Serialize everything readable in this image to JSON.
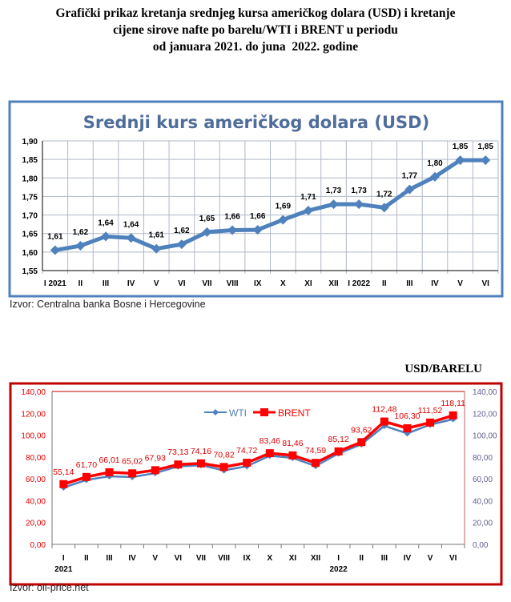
{
  "heading": {
    "line1": "Grafički prikaz kretanja srednjeg kursa američkog dolara (USD) i kretanje",
    "line2": "cijene sirove nafte po barelu/WTI i BRENT u periodu",
    "line3": "od januara 2021. do juna  2022. godine"
  },
  "chart_data": [
    {
      "type": "line",
      "title": "Srednji kurs američkog dolara (USD)",
      "categories": [
        "I 2021",
        "II",
        "III",
        "IV",
        "V",
        "VI",
        "VII",
        "VIII",
        "IX",
        "X",
        "XI",
        "XII",
        "I 2022",
        "II",
        "III",
        "IV",
        "V",
        "VI"
      ],
      "values": [
        1.605,
        1.617,
        1.642,
        1.638,
        1.609,
        1.621,
        1.654,
        1.659,
        1.66,
        1.687,
        1.712,
        1.729,
        1.729,
        1.72,
        1.769,
        1.803,
        1.848,
        1.848
      ],
      "data_labels": [
        "1,61",
        "1,62",
        "1,64",
        "1,64",
        "1,61",
        "1,62",
        "1,65",
        "1,66",
        "1,66",
        "1,69",
        "1,71",
        "1,73",
        "1,73",
        "1,72",
        "1,77",
        "1,80",
        "1,85",
        "1,85"
      ],
      "yticks": [
        "1,55",
        "1,60",
        "1,65",
        "1,70",
        "1,75",
        "1,80",
        "1,85",
        "1,90"
      ],
      "ylim": [
        1.55,
        1.9
      ],
      "grid": true,
      "color": "#4f81bd",
      "source": "Izvor: Centralna banka Bosne i Hercegovine"
    },
    {
      "type": "line",
      "unit_label": "USD/BARELU",
      "categories": [
        "I",
        "II",
        "III",
        "IV",
        "V",
        "VI",
        "VII",
        "VIII",
        "IX",
        "X",
        "XI",
        "XII",
        "I",
        "II",
        "III",
        "IV",
        "V",
        "VI"
      ],
      "year_labels": {
        "0": "2021",
        "12": "2022"
      },
      "series": [
        {
          "name": "WTI",
          "color": "#4f81bd",
          "values": [
            52.0,
            59.0,
            62.3,
            61.7,
            65.2,
            71.4,
            72.5,
            67.7,
            71.5,
            81.2,
            79.2,
            71.7,
            83.2,
            91.6,
            108.5,
            101.6,
            109.6,
            114.6
          ]
        },
        {
          "name": "BRENT",
          "color": "#ff0000",
          "values": [
            55.14,
            61.7,
            66.01,
            65.02,
            67.93,
            73.13,
            74.16,
            70.82,
            74.72,
            83.46,
            81.46,
            74.59,
            85.12,
            93.62,
            112.48,
            106.3,
            111.52,
            118.11
          ],
          "data_labels": [
            "55,14",
            "61,70",
            "66,01",
            "65,02",
            "67,93",
            "73,13",
            "74,16",
            "70,82",
            "74,72",
            "83,46",
            "81,46",
            "74,59",
            "85,12",
            "93,62",
            "112,48",
            "106,30",
            "111,52",
            "118,11"
          ]
        }
      ],
      "yticks": [
        "0,00",
        "20,00",
        "40,00",
        "60,00",
        "80,00",
        "100,00",
        "120,00",
        "140,00"
      ],
      "ylim": [
        0,
        140
      ],
      "legend": "top-center",
      "grid": false,
      "source": "Izvor: oil-price.net"
    }
  ]
}
